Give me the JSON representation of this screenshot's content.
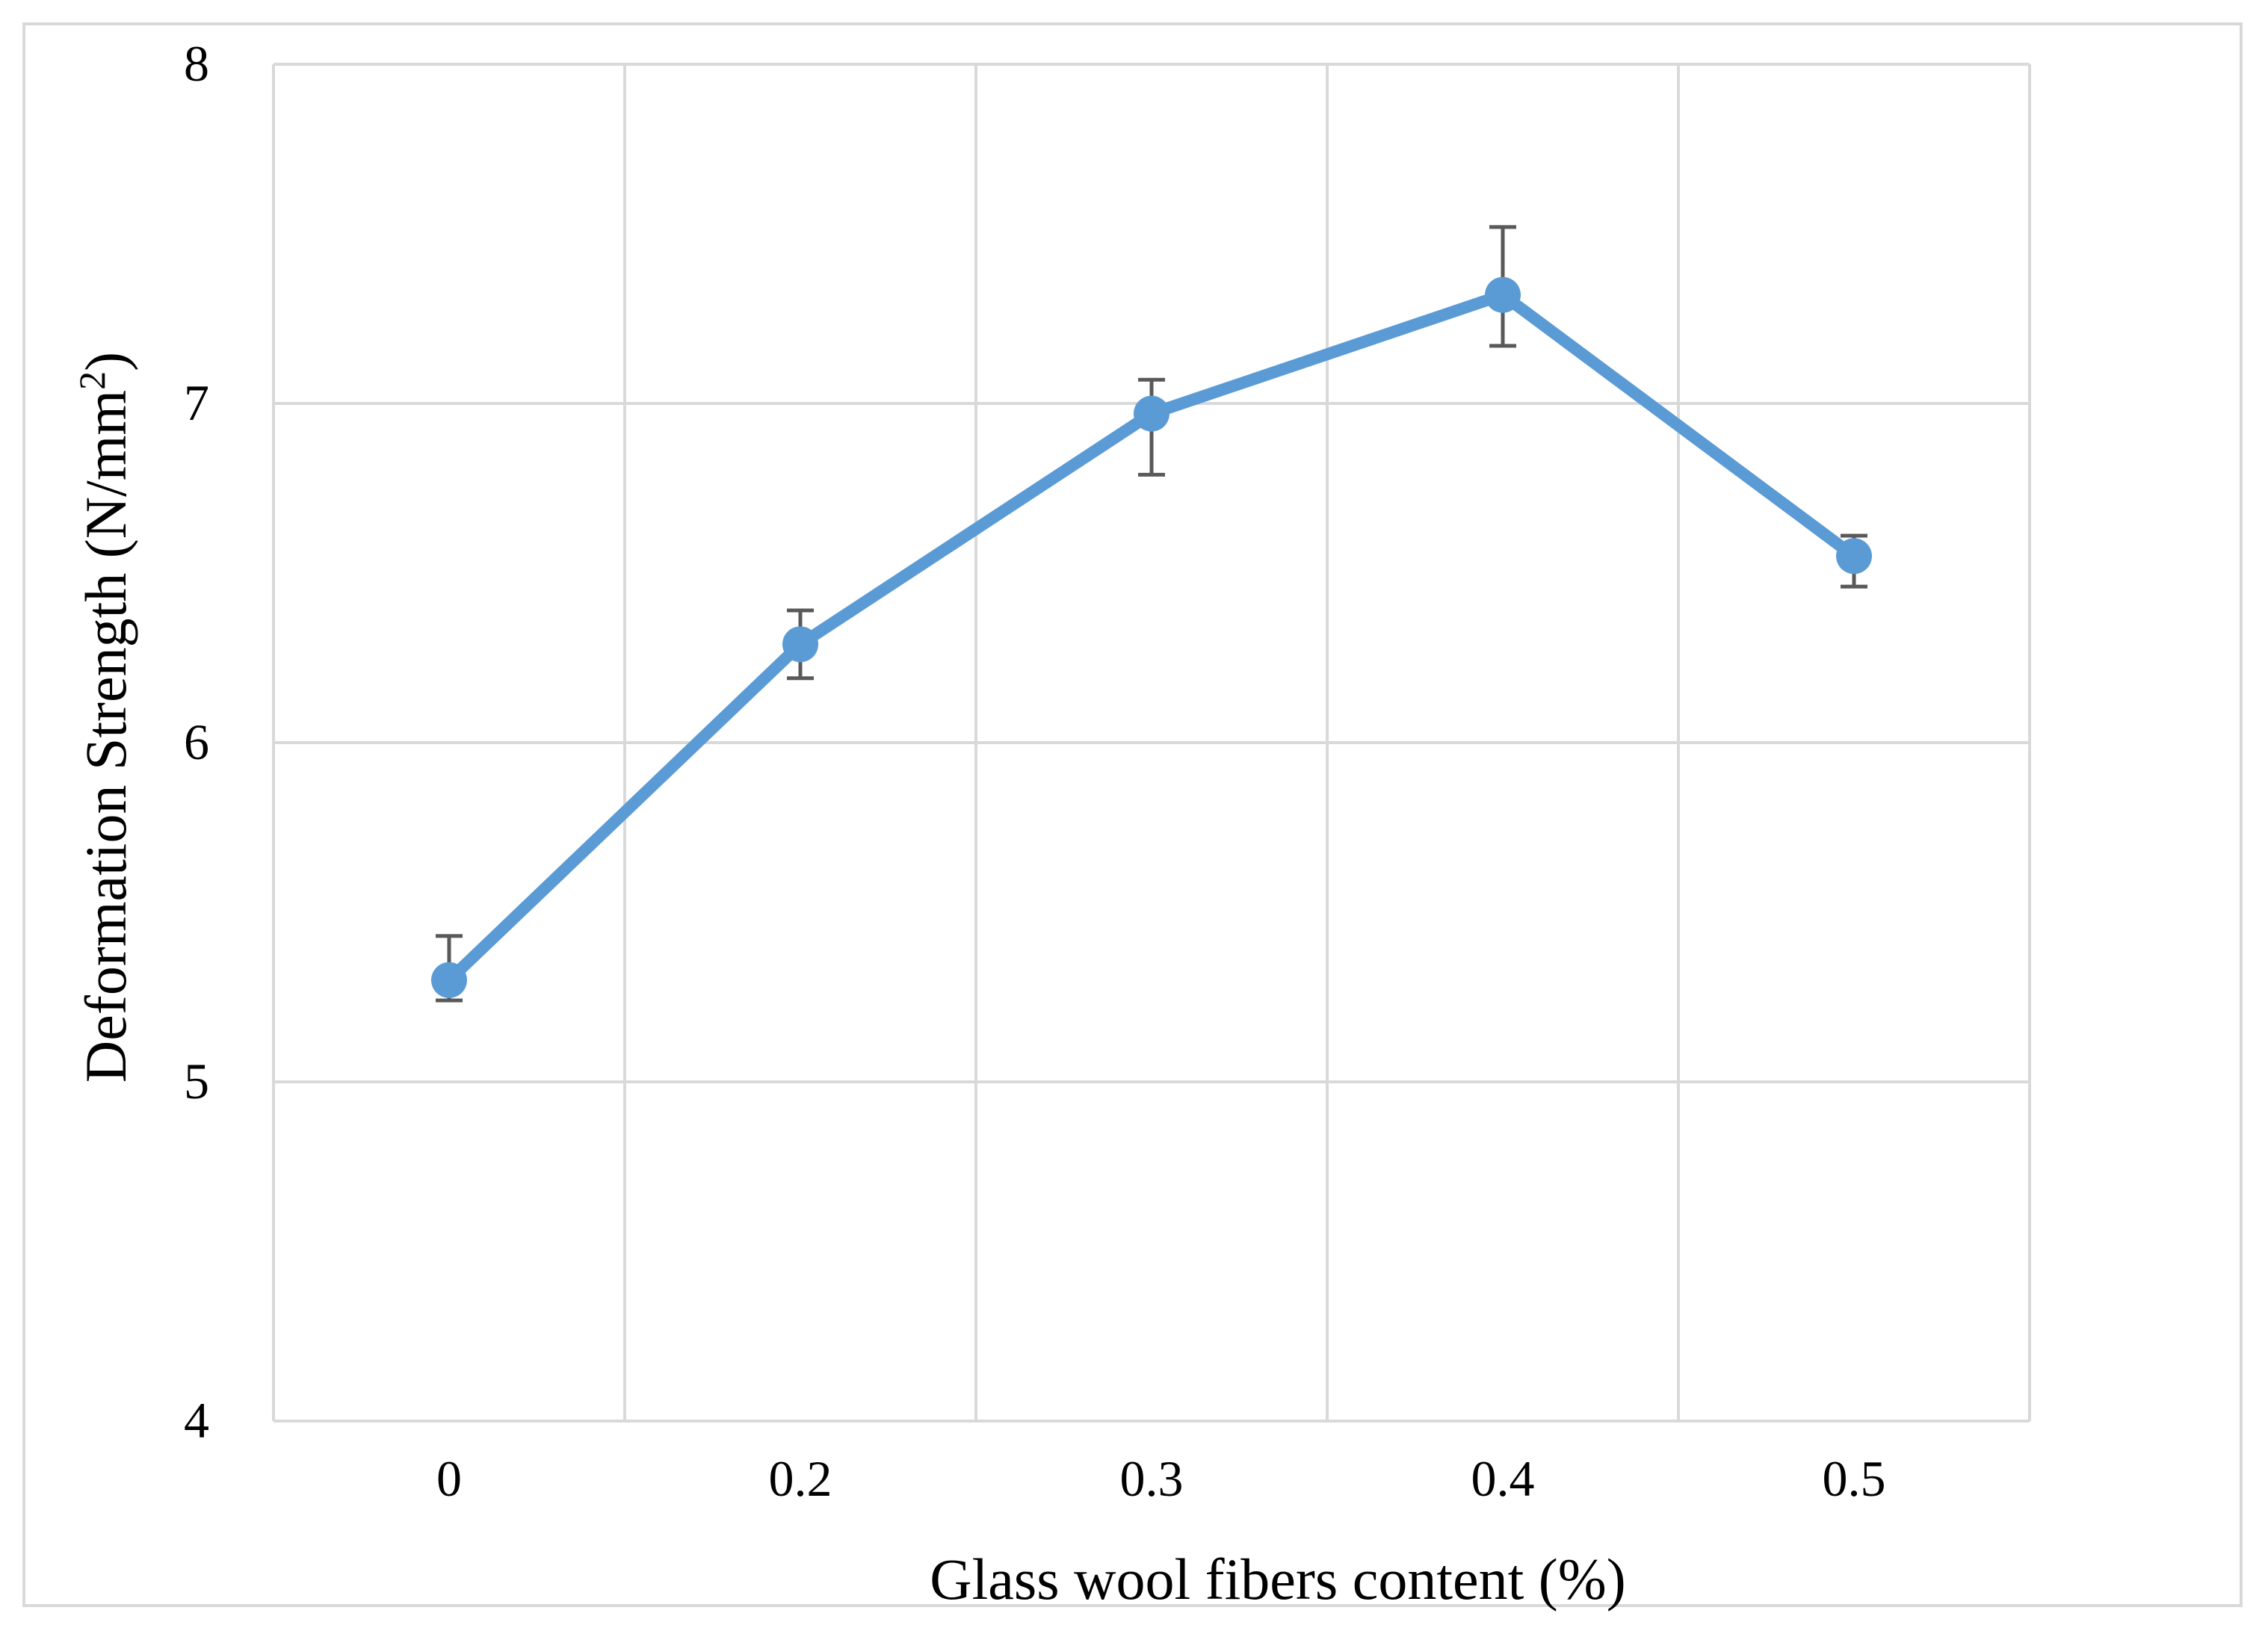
{
  "chart_data": {
    "type": "line",
    "title": "",
    "xlabel": "Glass wool fibers content (%)",
    "ylabel_main": "Deformation Strength (N/mm",
    "ylabel_sup": "2",
    "ylabel_close": ")",
    "categories": [
      "0",
      "0.2",
      "0.3",
      "0.4",
      "0.5"
    ],
    "yticks": [
      "4",
      "5",
      "6",
      "7",
      "8"
    ],
    "ylim": [
      4,
      8
    ],
    "grid": true,
    "legend": "none",
    "series": [
      {
        "values": [
          5.3,
          6.29,
          6.97,
          7.32,
          6.55
        ],
        "error_upper": [
          5.43,
          6.39,
          7.07,
          7.52,
          6.61
        ],
        "error_lower": [
          5.24,
          6.19,
          6.79,
          7.17,
          6.46
        ],
        "color": "#5b9bd5"
      }
    ],
    "errorbar_color": "#595959",
    "gridline_color": "#d9d9d9"
  }
}
